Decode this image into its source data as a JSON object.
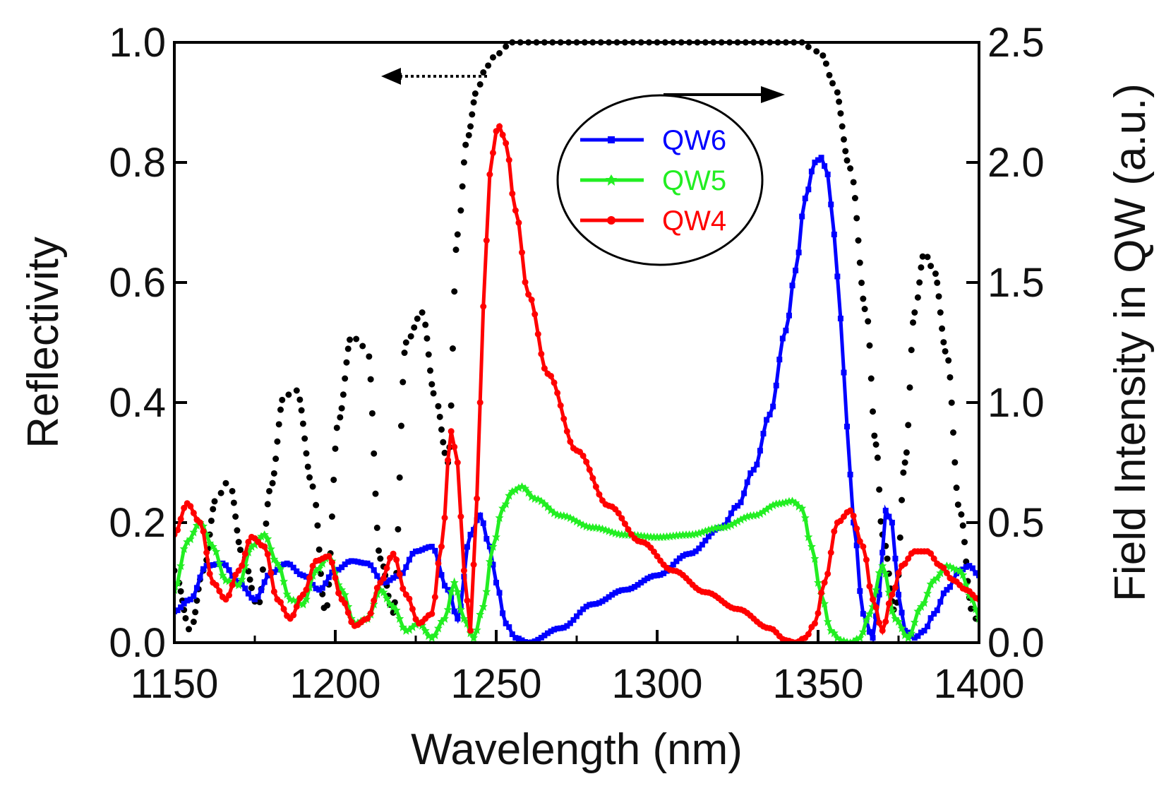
{
  "chart_data": {
    "type": "line",
    "xlabel": "Wavelength (nm)",
    "ylabel": "Reflectivity",
    "y2label": "Field Intensity in QW (a.u.)",
    "xlim": [
      1150,
      1400
    ],
    "ylim": [
      0,
      1
    ],
    "y2lim": [
      0,
      2.5
    ],
    "xticks": [
      "1150",
      "1200",
      "1250",
      "1300",
      "1350",
      "1400"
    ],
    "yticks": [
      "0.0",
      "0.2",
      "0.4",
      "0.6",
      "0.8",
      "1.0"
    ],
    "y2ticks": [
      "0.0",
      "0.5",
      "1.0",
      "1.5",
      "2.0",
      "2.5"
    ],
    "legend_position": "top-right",
    "series": [
      {
        "name": "Reflectivity",
        "axis": "left",
        "color": "#000000",
        "style": "dotted",
        "x": [
          1150,
          1155,
          1159,
          1163,
          1167,
          1171,
          1176,
          1180,
          1184,
          1188,
          1193,
          1197,
          1201,
          1205,
          1210,
          1214,
          1218,
          1222,
          1227,
          1231,
          1235,
          1238,
          1241,
          1244,
          1247,
          1250,
          1255,
          1265,
          1280,
          1300,
          1320,
          1340,
          1345,
          1348,
          1351,
          1355,
          1360,
          1365,
          1368,
          1370,
          1374,
          1377,
          1380,
          1383,
          1386,
          1390,
          1394,
          1398,
          1400
        ],
        "values": [
          0.12,
          0.02,
          0.12,
          0.24,
          0.27,
          0.15,
          0.06,
          0.26,
          0.41,
          0.42,
          0.26,
          0.05,
          0.37,
          0.51,
          0.49,
          0.14,
          0.05,
          0.5,
          0.55,
          0.41,
          0.3,
          0.68,
          0.84,
          0.92,
          0.96,
          0.98,
          1.0,
          1.0,
          1.0,
          1.0,
          1.0,
          1.0,
          1.0,
          0.99,
          0.98,
          0.93,
          0.79,
          0.55,
          0.33,
          0.18,
          0.05,
          0.3,
          0.55,
          0.65,
          0.62,
          0.48,
          0.22,
          0.05,
          0.03
        ]
      },
      {
        "name": "QW6",
        "axis": "right",
        "color": "#0000ff",
        "marker": "square",
        "x": [
          1150,
          1155,
          1160,
          1165,
          1170,
          1175,
          1180,
          1185,
          1190,
          1195,
          1200,
          1205,
          1210,
          1215,
          1220,
          1225,
          1230,
          1235,
          1238,
          1242,
          1245,
          1248,
          1250,
          1253,
          1256,
          1260,
          1270,
          1280,
          1290,
          1300,
          1310,
          1320,
          1325,
          1330,
          1335,
          1340,
          1343,
          1346,
          1349,
          1351,
          1353,
          1355,
          1357,
          1359,
          1361,
          1364,
          1367,
          1369,
          1371,
          1373,
          1375,
          1377,
          1380,
          1383,
          1386,
          1390,
          1394,
          1397,
          1400
        ],
        "values": [
          0.13,
          0.18,
          0.32,
          0.33,
          0.25,
          0.18,
          0.29,
          0.33,
          0.28,
          0.22,
          0.3,
          0.34,
          0.33,
          0.25,
          0.28,
          0.38,
          0.4,
          0.22,
          0.1,
          0.45,
          0.53,
          0.4,
          0.25,
          0.08,
          0.02,
          0.0,
          0.06,
          0.16,
          0.22,
          0.28,
          0.37,
          0.48,
          0.57,
          0.72,
          0.95,
          1.3,
          1.55,
          1.85,
          2.0,
          2.02,
          1.95,
          1.7,
          1.35,
          0.9,
          0.5,
          0.12,
          0.02,
          0.2,
          0.55,
          0.5,
          0.2,
          0.05,
          0.02,
          0.05,
          0.12,
          0.22,
          0.3,
          0.32,
          0.28
        ]
      },
      {
        "name": "QW5",
        "axis": "right",
        "color": "#22ee22",
        "marker": "star",
        "x": [
          1150,
          1154,
          1158,
          1162,
          1166,
          1170,
          1174,
          1178,
          1182,
          1186,
          1190,
          1194,
          1198,
          1202,
          1206,
          1210,
          1214,
          1218,
          1222,
          1226,
          1230,
          1234,
          1237,
          1240,
          1243,
          1246,
          1249,
          1252,
          1255,
          1258,
          1262,
          1270,
          1280,
          1290,
          1300,
          1310,
          1320,
          1330,
          1338,
          1342,
          1345,
          1348,
          1351,
          1354,
          1357,
          1360,
          1363,
          1366,
          1370,
          1374,
          1378,
          1382,
          1386,
          1390,
          1394,
          1398,
          1400
        ],
        "values": [
          0.22,
          0.42,
          0.5,
          0.4,
          0.26,
          0.24,
          0.4,
          0.45,
          0.33,
          0.18,
          0.16,
          0.3,
          0.36,
          0.22,
          0.08,
          0.1,
          0.22,
          0.15,
          0.05,
          0.08,
          0.02,
          0.1,
          0.25,
          0.1,
          0.02,
          0.15,
          0.4,
          0.56,
          0.63,
          0.65,
          0.6,
          0.53,
          0.48,
          0.45,
          0.44,
          0.45,
          0.48,
          0.53,
          0.58,
          0.59,
          0.56,
          0.4,
          0.2,
          0.05,
          0.01,
          0.0,
          0.02,
          0.12,
          0.32,
          0.1,
          0.02,
          0.15,
          0.26,
          0.32,
          0.3,
          0.18,
          0.1
        ]
      },
      {
        "name": "QW4",
        "axis": "right",
        "color": "#ff0000",
        "marker": "circle",
        "x": [
          1150,
          1154,
          1158,
          1162,
          1166,
          1170,
          1174,
          1178,
          1182,
          1186,
          1190,
          1194,
          1198,
          1202,
          1206,
          1210,
          1214,
          1218,
          1222,
          1226,
          1230,
          1233,
          1236,
          1238,
          1240,
          1242,
          1244,
          1246,
          1248,
          1250,
          1251,
          1253,
          1256,
          1260,
          1266,
          1275,
          1285,
          1295,
          1305,
          1315,
          1325,
          1335,
          1340,
          1343,
          1346,
          1349,
          1352,
          1356,
          1360,
          1364,
          1367,
          1370,
          1373,
          1376,
          1380,
          1384,
          1388,
          1392,
          1396,
          1400
        ],
        "values": [
          0.45,
          0.58,
          0.5,
          0.25,
          0.18,
          0.3,
          0.44,
          0.4,
          0.18,
          0.1,
          0.2,
          0.34,
          0.36,
          0.18,
          0.07,
          0.1,
          0.25,
          0.37,
          0.2,
          0.08,
          0.12,
          0.4,
          0.88,
          0.75,
          0.3,
          0.05,
          0.6,
          1.4,
          1.95,
          2.13,
          2.15,
          2.08,
          1.8,
          1.45,
          1.12,
          0.8,
          0.57,
          0.42,
          0.3,
          0.21,
          0.14,
          0.06,
          0.01,
          0.0,
          0.02,
          0.08,
          0.25,
          0.5,
          0.55,
          0.4,
          0.18,
          0.05,
          0.2,
          0.32,
          0.38,
          0.38,
          0.32,
          0.26,
          0.22,
          0.18
        ]
      }
    ],
    "legend": [
      "QW6",
      "QW5",
      "QW4"
    ]
  }
}
